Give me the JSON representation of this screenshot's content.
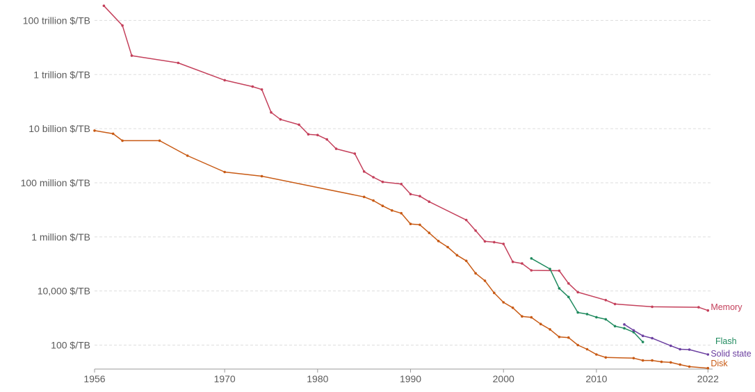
{
  "chart_data": {
    "type": "line",
    "y_scale": "log",
    "ylim": [
      13,
      400000000000000.0
    ],
    "xlim": [
      1956,
      2022.5
    ],
    "y_ticks": [
      {
        "value": 100,
        "label": "100 $/TB"
      },
      {
        "value": 10000,
        "label": "10,000 $/TB"
      },
      {
        "value": 1000000,
        "label": "1 million $/TB"
      },
      {
        "value": 100000000,
        "label": "100 million $/TB"
      },
      {
        "value": 10000000000,
        "label": "10 billion $/TB"
      },
      {
        "value": 1000000000000,
        "label": "1 trillion $/TB"
      },
      {
        "value": 100000000000000,
        "label": "100 trillion $/TB"
      }
    ],
    "x_ticks": [
      1956,
      1970,
      1980,
      1990,
      2000,
      2010,
      2022
    ],
    "grid": "horizontal dashed",
    "legend": "labels at right end of lines",
    "series": [
      {
        "name": "Memory",
        "color": "#c4405b",
        "points": [
          [
            1957,
            350000000000000.0
          ],
          [
            1959,
            65000000000000.0
          ],
          [
            1960,
            5000000000000.0
          ],
          [
            1965,
            2700000000000.0
          ],
          [
            1970,
            620000000000.0
          ],
          [
            1973,
            360000000000.0
          ],
          [
            1974,
            280000000000.0
          ],
          [
            1975,
            40000000000.0
          ],
          [
            1976,
            22000000000.0
          ],
          [
            1978,
            14000000000.0
          ],
          [
            1979,
            6200000000.0
          ],
          [
            1980,
            5800000000.0
          ],
          [
            1981,
            4000000000.0
          ],
          [
            1982,
            1800000000.0
          ],
          [
            1984,
            1200000000.0
          ],
          [
            1985,
            260000000.0
          ],
          [
            1986,
            160000000.0
          ],
          [
            1987,
            108000000.0
          ],
          [
            1989,
            90000000.0
          ],
          [
            1990,
            38000000.0
          ],
          [
            1991,
            32000000.0
          ],
          [
            1992,
            20000000.0
          ],
          [
            1996,
            4200000.0
          ],
          [
            1997,
            1700000.0
          ],
          [
            1998,
            680000.0
          ],
          [
            1999,
            640000.0
          ],
          [
            2000,
            550000.0
          ],
          [
            2001,
            120000.0
          ],
          [
            2002,
            104000.0
          ],
          [
            2003,
            58000.0
          ],
          [
            2006,
            56000.0
          ],
          [
            2007,
            19000.0
          ],
          [
            2008,
            9000
          ],
          [
            2011,
            4600.0
          ],
          [
            2012,
            3300.0
          ],
          [
            2016,
            2600.0
          ],
          [
            2021,
            2500.0
          ],
          [
            2022,
            1900.0
          ]
        ]
      },
      {
        "name": "Flash",
        "color": "#1f8a5e",
        "points": [
          [
            2003,
            160000.0
          ],
          [
            2005,
            65000.0
          ],
          [
            2006,
            12500.0
          ],
          [
            2007,
            6000.0
          ],
          [
            2008,
            1600.0
          ],
          [
            2009,
            1400.0
          ],
          [
            2010,
            1070.0
          ],
          [
            2011,
            900
          ],
          [
            2012,
            500
          ],
          [
            2013,
            420
          ],
          [
            2014,
            300
          ],
          [
            2015,
            130
          ]
        ]
      },
      {
        "name": "Solid state",
        "color": "#6b3fa0",
        "points": [
          [
            2013,
            580
          ],
          [
            2014,
            350
          ],
          [
            2015,
            220
          ],
          [
            2016,
            180
          ],
          [
            2018,
            95
          ],
          [
            2019,
            70
          ],
          [
            2020,
            68
          ],
          [
            2022,
            45
          ]
        ]
      },
      {
        "name": "Disk",
        "color": "#c85a14",
        "points": [
          [
            1956,
            8500000000.0
          ],
          [
            1958,
            6500000000.0
          ],
          [
            1959,
            3600000000.0
          ],
          [
            1963,
            3600000000.0
          ],
          [
            1966,
            1000000000.0
          ],
          [
            1970,
            250000000.0
          ],
          [
            1974,
            175000000.0
          ],
          [
            1985,
            30000000.0
          ],
          [
            1986,
            22000000.0
          ],
          [
            1987,
            14000000.0
          ],
          [
            1988,
            9500000.0
          ],
          [
            1989,
            7500000.0
          ],
          [
            1990,
            3000000.0
          ],
          [
            1991,
            2800000.0
          ],
          [
            1992,
            1400000.0
          ],
          [
            1993,
            700000.0
          ],
          [
            1994,
            420000.0
          ],
          [
            1995,
            210000.0
          ],
          [
            1996,
            130000.0
          ],
          [
            1997,
            45000.0
          ],
          [
            1998,
            24000.0
          ],
          [
            1999,
            8500.0
          ],
          [
            2000,
            3800.0
          ],
          [
            2001,
            2400.0
          ],
          [
            2002,
            1150.0
          ],
          [
            2003,
            1060.0
          ],
          [
            2004,
            600
          ],
          [
            2005,
            380
          ],
          [
            2006,
            200
          ],
          [
            2007,
            190
          ],
          [
            2008,
            100
          ],
          [
            2009,
            70
          ],
          [
            2010,
            45
          ],
          [
            2011,
            35
          ],
          [
            2014,
            33
          ],
          [
            2015,
            27
          ],
          [
            2016,
            27
          ],
          [
            2017,
            24
          ],
          [
            2018,
            23
          ],
          [
            2019,
            19
          ],
          [
            2020,
            16
          ],
          [
            2022,
            14
          ]
        ]
      }
    ]
  }
}
